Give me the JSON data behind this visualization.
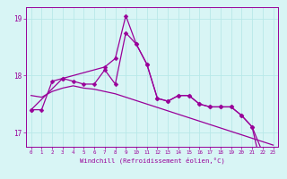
{
  "xlabel": "Windchill (Refroidissement éolien,°C)",
  "x": [
    0,
    1,
    2,
    3,
    4,
    5,
    6,
    7,
    8,
    9,
    10,
    11,
    12,
    13,
    14,
    15,
    16,
    17,
    18,
    19,
    20,
    21,
    22,
    23
  ],
  "y_line1": [
    17.4,
    17.4,
    17.9,
    17.95,
    17.9,
    17.85,
    17.85,
    18.1,
    17.85,
    18.75,
    18.55,
    18.2,
    17.6,
    17.55,
    17.65,
    17.65,
    17.5,
    17.45,
    17.45,
    17.45,
    17.3,
    17.1,
    16.65,
    16.55
  ],
  "y_line2": [
    17.4,
    null,
    null,
    17.95,
    null,
    null,
    null,
    18.15,
    18.3,
    19.05,
    18.55,
    18.2,
    17.6,
    17.55,
    17.65,
    17.65,
    17.5,
    17.45,
    17.45,
    17.45,
    17.3,
    17.1,
    16.3,
    16.55
  ],
  "y_trend": [
    17.65,
    17.62,
    17.72,
    17.78,
    17.82,
    17.78,
    17.76,
    17.72,
    17.68,
    17.62,
    17.56,
    17.5,
    17.44,
    17.38,
    17.32,
    17.26,
    17.2,
    17.14,
    17.08,
    17.02,
    16.96,
    16.9,
    16.84,
    16.78
  ],
  "bg_color": "#d8f5f5",
  "line_color": "#990099",
  "grid_color": "#b8e8e8",
  "ylim_min": 16.75,
  "ylim_max": 19.2,
  "yticks": [
    17,
    18,
    19
  ],
  "markersize": 2.5,
  "linewidth": 0.9
}
